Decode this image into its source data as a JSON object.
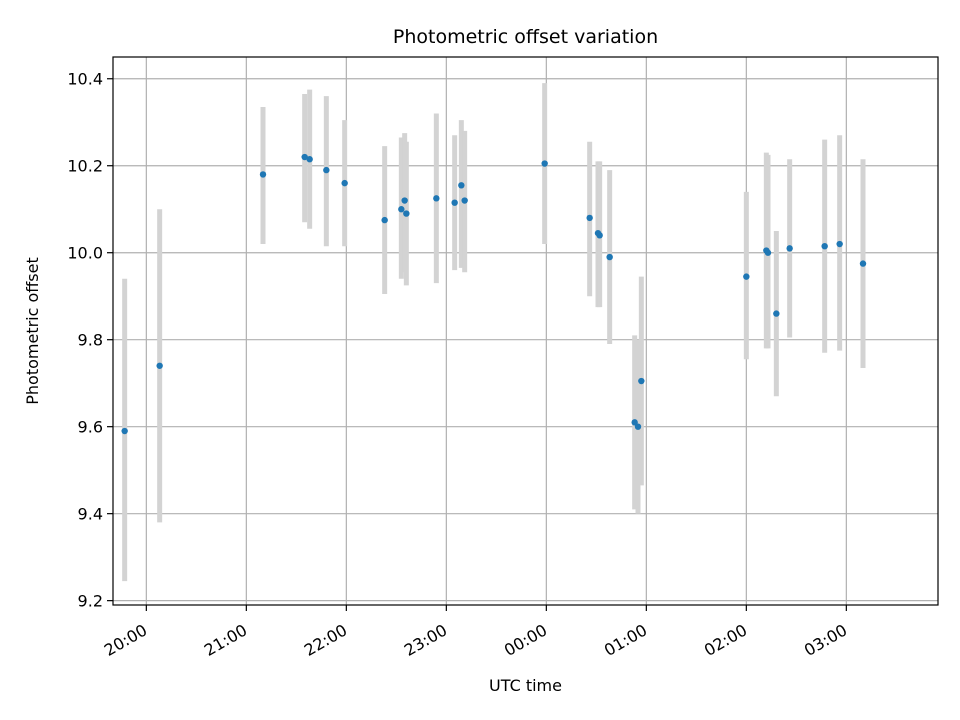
{
  "chart_data": {
    "type": "scatter",
    "title": "Photometric offset variation",
    "xlabel": "UTC time",
    "ylabel": "Photometric offset",
    "x_unit": "hours_after_midnight_first_night",
    "xlim": [
      "19:40",
      "03:55"
    ],
    "ylim": [
      9.19,
      10.45
    ],
    "x_ticks": [
      "20:00",
      "21:00",
      "22:00",
      "23:00",
      "00:00",
      "01:00",
      "02:00",
      "03:00"
    ],
    "y_ticks": [
      "9.2",
      "9.4",
      "9.6",
      "9.8",
      "10.0",
      "10.2",
      "10.4"
    ],
    "grid": true,
    "colors": {
      "point": "#1f77b4",
      "errorbar": "#d3d3d3",
      "grid": "#b0b0b0",
      "axes": "#000000"
    },
    "points": [
      {
        "t": "19:47",
        "y": 9.59,
        "lo": 9.245,
        "hi": 9.94
      },
      {
        "t": "20:08",
        "y": 9.74,
        "lo": 9.38,
        "hi": 10.1
      },
      {
        "t": "21:10",
        "y": 10.18,
        "lo": 10.02,
        "hi": 10.335
      },
      {
        "t": "21:35",
        "y": 10.22,
        "lo": 10.07,
        "hi": 10.365
      },
      {
        "t": "21:38",
        "y": 10.215,
        "lo": 10.055,
        "hi": 10.375
      },
      {
        "t": "21:48",
        "y": 10.19,
        "lo": 10.015,
        "hi": 10.36
      },
      {
        "t": "21:59",
        "y": 10.16,
        "lo": 10.015,
        "hi": 10.305
      },
      {
        "t": "22:23",
        "y": 10.075,
        "lo": 9.905,
        "hi": 10.245
      },
      {
        "t": "22:33",
        "y": 10.1,
        "lo": 9.94,
        "hi": 10.265
      },
      {
        "t": "22:35",
        "y": 10.12,
        "lo": 9.955,
        "hi": 10.275
      },
      {
        "t": "22:36",
        "y": 10.09,
        "lo": 9.925,
        "hi": 10.255
      },
      {
        "t": "22:54",
        "y": 10.125,
        "lo": 9.93,
        "hi": 10.32
      },
      {
        "t": "23:05",
        "y": 10.115,
        "lo": 9.96,
        "hi": 10.27
      },
      {
        "t": "23:09",
        "y": 10.155,
        "lo": 9.965,
        "hi": 10.305
      },
      {
        "t": "23:11",
        "y": 10.12,
        "lo": 9.955,
        "hi": 10.28
      },
      {
        "t": "23:59",
        "y": 10.205,
        "lo": 10.02,
        "hi": 10.39
      },
      {
        "t": "00:26",
        "y": 10.08,
        "lo": 9.9,
        "hi": 10.255
      },
      {
        "t": "00:31",
        "y": 10.045,
        "lo": 9.875,
        "hi": 10.21
      },
      {
        "t": "00:32",
        "y": 10.04,
        "lo": 9.875,
        "hi": 10.21
      },
      {
        "t": "00:38",
        "y": 9.99,
        "lo": 9.79,
        "hi": 10.19
      },
      {
        "t": "00:53",
        "y": 9.61,
        "lo": 9.41,
        "hi": 9.81
      },
      {
        "t": "00:55",
        "y": 9.6,
        "lo": 9.4,
        "hi": 9.8
      },
      {
        "t": "00:57",
        "y": 9.705,
        "lo": 9.465,
        "hi": 9.945
      },
      {
        "t": "02:00",
        "y": 9.945,
        "lo": 9.755,
        "hi": 10.14
      },
      {
        "t": "02:12",
        "y": 10.005,
        "lo": 9.78,
        "hi": 10.23
      },
      {
        "t": "02:13",
        "y": 10.0,
        "lo": 9.78,
        "hi": 10.225
      },
      {
        "t": "02:18",
        "y": 9.86,
        "lo": 9.67,
        "hi": 10.05
      },
      {
        "t": "02:26",
        "y": 10.01,
        "lo": 9.805,
        "hi": 10.215
      },
      {
        "t": "02:47",
        "y": 10.015,
        "lo": 9.77,
        "hi": 10.26
      },
      {
        "t": "02:56",
        "y": 10.02,
        "lo": 9.775,
        "hi": 10.27
      },
      {
        "t": "03:10",
        "y": 9.975,
        "lo": 9.735,
        "hi": 10.215
      }
    ]
  }
}
